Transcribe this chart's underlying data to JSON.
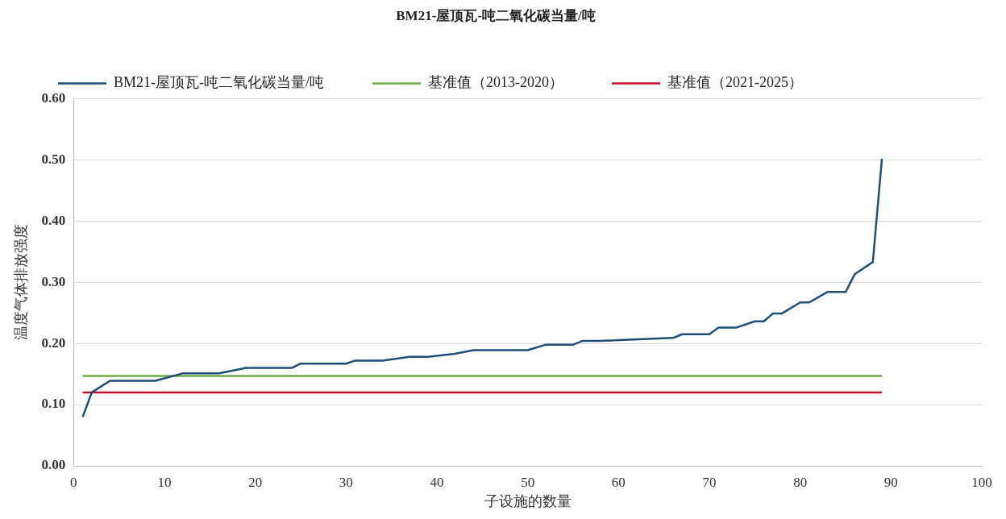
{
  "chart_data": {
    "type": "line",
    "title": "BM21-屋顶瓦-吨二氧化碳当量/吨",
    "xlabel": "子设施的数量",
    "ylabel": "温度气体排放强度",
    "xlim": [
      0,
      100
    ],
    "xticks": [
      0,
      10,
      20,
      30,
      40,
      50,
      60,
      70,
      80,
      90,
      100
    ],
    "ylim": [
      0,
      0.6
    ],
    "yticks": [
      {
        "value": 0,
        "label": "0.00"
      },
      {
        "value": 0.1,
        "label": "0.10"
      },
      {
        "value": 0.2,
        "label": "0.20"
      },
      {
        "value": 0.3,
        "label": "0.30"
      },
      {
        "value": 0.4,
        "label": "0.40"
      },
      {
        "value": 0.5,
        "label": "0.50"
      },
      {
        "value": 0.6,
        "label": "0.60"
      }
    ],
    "grid": "y",
    "legend": "top",
    "marker": "none",
    "line_style": "solid",
    "series": [
      {
        "name": "BM21-屋顶瓦-吨二氧化碳当量/吨",
        "color": "#1f4e79",
        "x": [
          1,
          2,
          4,
          9,
          12,
          16,
          19,
          24,
          25,
          30,
          31,
          34,
          37,
          39,
          42,
          44,
          50,
          52,
          55,
          56,
          58,
          66,
          67,
          70,
          71,
          73,
          75,
          76,
          77,
          78,
          80,
          81,
          83,
          85,
          86,
          88,
          89
        ],
        "values": [
          0.08,
          0.12,
          0.139,
          0.139,
          0.151,
          0.151,
          0.16,
          0.16,
          0.167,
          0.167,
          0.172,
          0.172,
          0.178,
          0.178,
          0.183,
          0.189,
          0.189,
          0.198,
          0.198,
          0.204,
          0.204,
          0.209,
          0.215,
          0.215,
          0.226,
          0.226,
          0.236,
          0.236,
          0.249,
          0.249,
          0.267,
          0.267,
          0.284,
          0.284,
          0.313,
          0.333,
          0.502
        ]
      },
      {
        "name": "基准值（2013-2020）",
        "color": "#70ad47",
        "x": [
          1,
          89
        ],
        "values": [
          0.147,
          0.147
        ]
      },
      {
        "name": "基准值（2021-2025）",
        "color": "#c8102e",
        "x": [
          1,
          89
        ],
        "values": [
          0.12,
          0.12
        ]
      }
    ]
  }
}
